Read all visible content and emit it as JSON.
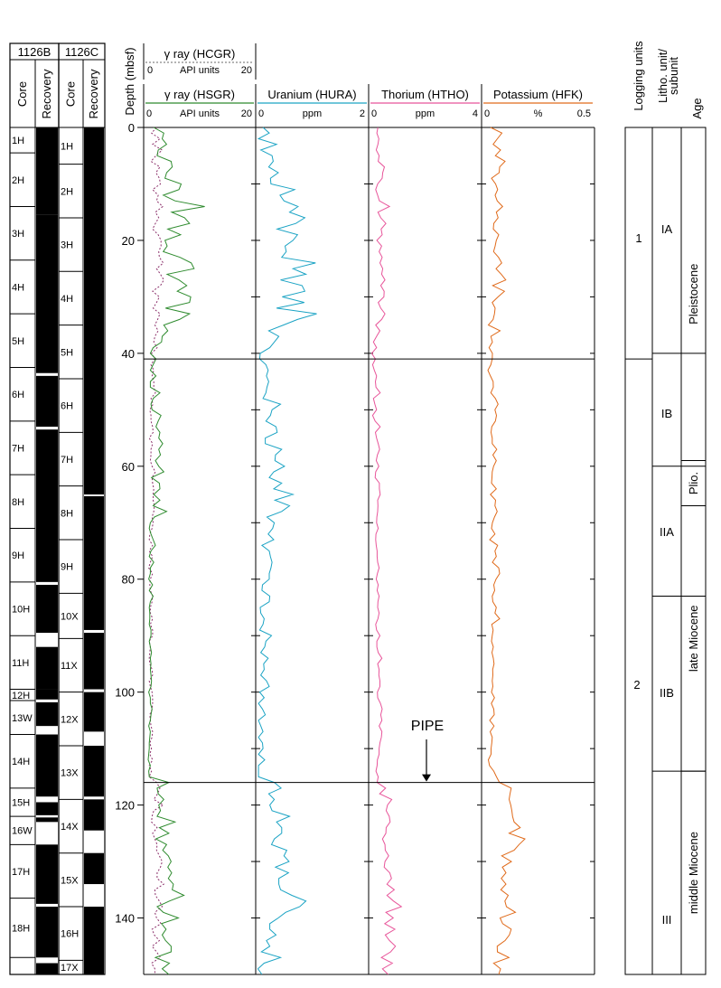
{
  "chart_data": {
    "type": "line",
    "title": "",
    "depth_axis": {
      "label": "Depth (mbsf)",
      "ylim": [
        0,
        150
      ],
      "ticks": [
        0,
        20,
        40,
        60,
        80,
        100,
        120,
        140
      ]
    },
    "hole_b": {
      "name": "1126B",
      "col_core": "Core",
      "col_recovery": "Recovery",
      "cores": [
        {
          "label": "1H",
          "top": 0,
          "bottom": 4.5
        },
        {
          "label": "2H",
          "top": 4.5,
          "bottom": 14
        },
        {
          "label": "3H",
          "top": 14,
          "bottom": 23.5
        },
        {
          "label": "4H",
          "top": 23.5,
          "bottom": 33
        },
        {
          "label": "5H",
          "top": 33,
          "bottom": 42.5
        },
        {
          "label": "6H",
          "top": 42.5,
          "bottom": 52
        },
        {
          "label": "7H",
          "top": 52,
          "bottom": 61.5
        },
        {
          "label": "8H",
          "top": 61.5,
          "bottom": 71
        },
        {
          "label": "9H",
          "top": 71,
          "bottom": 80.5
        },
        {
          "label": "10H",
          "top": 80.5,
          "bottom": 90
        },
        {
          "label": "11H",
          "top": 90,
          "bottom": 99.5
        },
        {
          "label": "12H",
          "top": 99.5,
          "bottom": 101.5
        },
        {
          "label": "13W",
          "top": 101.5,
          "bottom": 107.5
        },
        {
          "label": "14H",
          "top": 107.5,
          "bottom": 117
        },
        {
          "label": "15H",
          "top": 117,
          "bottom": 122
        },
        {
          "label": "16W",
          "top": 122,
          "bottom": 127
        },
        {
          "label": "17H",
          "top": 127,
          "bottom": 136.5
        },
        {
          "label": "18H",
          "top": 136.5,
          "bottom": 147
        }
      ],
      "recovered": [
        [
          0,
          15.5
        ],
        [
          15.5,
          43.5
        ],
        [
          44,
          53
        ],
        [
          53.5,
          80.5
        ],
        [
          81,
          89.5
        ],
        [
          92,
          99.5
        ],
        [
          99.5,
          101.3
        ],
        [
          101.8,
          106
        ],
        [
          107.5,
          118.5
        ],
        [
          119.5,
          121.8
        ],
        [
          122.2,
          123
        ],
        [
          127,
          137.5
        ],
        [
          138,
          147
        ],
        [
          148,
          150
        ]
      ]
    },
    "hole_c": {
      "name": "1126C",
      "col_core": "Core",
      "col_recovery": "Recovery",
      "cores": [
        {
          "label": "1H",
          "top": 0,
          "bottom": 6.5
        },
        {
          "label": "2H",
          "top": 6.5,
          "bottom": 16
        },
        {
          "label": "3H",
          "top": 16,
          "bottom": 25.5
        },
        {
          "label": "4H",
          "top": 25.5,
          "bottom": 35
        },
        {
          "label": "5H",
          "top": 35,
          "bottom": 44.5
        },
        {
          "label": "6H",
          "top": 44.5,
          "bottom": 54
        },
        {
          "label": "7H",
          "top": 54,
          "bottom": 63.5
        },
        {
          "label": "8H",
          "top": 63.5,
          "bottom": 73
        },
        {
          "label": "9H",
          "top": 73,
          "bottom": 82.5
        },
        {
          "label": "10X",
          "top": 82.5,
          "bottom": 90.5
        },
        {
          "label": "11X",
          "top": 90.5,
          "bottom": 100
        },
        {
          "label": "12X",
          "top": 100,
          "bottom": 109.5
        },
        {
          "label": "13X",
          "top": 109.5,
          "bottom": 119
        },
        {
          "label": "14X",
          "top": 119,
          "bottom": 128.5
        },
        {
          "label": "15X",
          "top": 128.5,
          "bottom": 138
        },
        {
          "label": "16H",
          "top": 138,
          "bottom": 147.5
        },
        {
          "label": "17X",
          "top": 147.5,
          "bottom": 150
        }
      ],
      "recovered": [
        [
          0,
          65
        ],
        [
          65.3,
          89
        ],
        [
          89.5,
          99.5
        ],
        [
          100,
          107
        ],
        [
          109.5,
          118.5
        ],
        [
          119,
          124.5
        ],
        [
          128.5,
          134
        ],
        [
          138,
          150
        ]
      ]
    },
    "tracks": [
      {
        "name": "γ ray (HCGR)",
        "unit": "API units",
        "range": [
          0,
          20
        ],
        "color": "#8b2f6a",
        "dashed": true,
        "values": [
          2.3,
          1.4,
          2.9,
          1.6,
          3.3,
          2.2,
          1.3,
          2.9,
          2.2,
          2.8,
          3.0,
          1.6,
          2.6,
          2.3,
          3.4,
          2.1,
          2.7,
          2.1,
          1.6,
          2.6,
          3.1,
          3.1,
          2.7,
          2.8,
          3.5,
          2.3,
          3.0,
          3.6,
          3.0,
          1.6,
          2.8,
          2.3,
          1.7,
          2.9,
          2.5,
          2.0,
          2.6,
          2.0,
          1.8,
          2.4,
          1.4,
          2.0,
          1.3,
          1.8,
          1.5,
          1.8,
          1.8,
          2.1,
          1.3,
          1.7,
          1.1,
          1.3,
          1.3,
          1.6,
          1.7,
          1.0,
          1.6,
          1.3,
          1.3,
          1.2,
          1.5,
          2.1,
          1.5,
          1.6,
          1.8,
          1.7,
          1.7,
          1.9,
          1.8,
          1.5,
          1.7,
          1.5,
          1.1,
          1.0,
          1.6,
          1.0,
          1.6,
          1.2,
          0.9,
          1.6,
          1.2,
          1.1,
          1.2,
          1.6,
          1.5,
          1.2,
          1.2,
          1.6,
          1.2,
          1.6,
          1.6,
          1.0,
          1.2,
          1.1,
          1.0,
          1.1,
          1.5,
          1.6,
          1.0,
          1.2,
          1.5,
          1.6,
          1.6,
          1.5,
          1.1,
          1.2,
          1.3,
          1.6,
          1.5,
          1.1,
          1.4,
          1.1,
          1.6,
          1.0,
          1.4,
          1.0,
          2.3,
          2.9,
          2.5,
          1.8,
          3.5,
          1.8,
          1.5,
          1.4,
          2.4,
          1.6,
          2.0,
          2.4,
          2.3,
          2.8,
          3.3,
          3.0,
          2.4,
          2.4,
          3.6,
          2.0,
          2.1,
          2.8,
          3.3,
          2.0,
          2.3,
          3.1,
          1.5,
          1.9,
          2.8,
          1.5,
          2.3,
          3.0,
          1.4,
          2.0,
          2.0
        ]
      },
      {
        "name": "γ ray (HSGR)",
        "unit": "API units",
        "range": [
          0,
          20
        ],
        "color": "#2e8b2e",
        "values": [
          1.8,
          3.6,
          3.3,
          4.1,
          2.6,
          2.4,
          4.9,
          5.1,
          4.1,
          3.8,
          6.7,
          6.3,
          3.5,
          5.6,
          10.9,
          5.0,
          7.3,
          8.2,
          4.3,
          6.6,
          3.8,
          4.2,
          3.5,
          6.5,
          8.5,
          9.0,
          4.2,
          6.3,
          7.7,
          6.0,
          8.4,
          8.2,
          3.9,
          8.2,
          6.4,
          3.6,
          4.3,
          3.3,
          3.2,
          1.7,
          1.2,
          2.2,
          1.7,
          1.2,
          2.2,
          1.2,
          1.2,
          2.9,
          1.7,
          1.3,
          1.5,
          3.1,
          2.6,
          2.2,
          2.9,
          2.7,
          3.4,
          2.7,
          3.0,
          2.1,
          2.7,
          3.6,
          1.4,
          2.8,
          2.9,
          1.8,
          2.9,
          1.7,
          4.1,
          1.9,
          1.2,
          1.0,
          1.3,
          1.7,
          2.1,
          1.3,
          1.0,
          1.8,
          1.2,
          1.2,
          0.9,
          1.6,
          1.0,
          1.7,
          1.2,
          1.0,
          1.1,
          1.1,
          1.0,
          1.3,
          1.3,
          1.0,
          1.2,
          1.4,
          1.2,
          1.3,
          1.2,
          1.3,
          1.4,
          1.3,
          0.9,
          1.2,
          1.2,
          1.5,
          1.3,
          1.2,
          0.9,
          1.2,
          1.1,
          1.0,
          1.0,
          0.9,
          0.8,
          1.2,
          0.9,
          1.0,
          4.5,
          2.4,
          2.6,
          3.6,
          2.7,
          3.0,
          2.4,
          5.6,
          2.8,
          4.5,
          2.2,
          4.1,
          3.4,
          4.4,
          4.9,
          4.3,
          5.0,
          4.4,
          5.3,
          5.1,
          7.2,
          4.6,
          2.4,
          3.5,
          6.2,
          3.2,
          4.0,
          3.3,
          3.9,
          4.9,
          4.9,
          2.1,
          4.6,
          3.3,
          4.5
        ]
      },
      {
        "name": "Uranium (HURA)",
        "unit": "ppm",
        "range": [
          0,
          2
        ],
        "color": "#1aa3c4",
        "values": [
          0.13,
          0.24,
          0.05,
          0.37,
          0.09,
          0.29,
          0.31,
          0.23,
          0.4,
          0.26,
          0.27,
          0.69,
          0.43,
          0.5,
          0.75,
          0.6,
          0.87,
          0.71,
          0.38,
          0.74,
          0.66,
          0.52,
          0.54,
          0.46,
          1.06,
          0.66,
          0.89,
          0.44,
          0.82,
          0.87,
          0.47,
          0.86,
          0.37,
          1.08,
          0.74,
          0.49,
          0.23,
          0.41,
          0.33,
          0.25,
          0.08,
          0.07,
          0.18,
          0.22,
          0.19,
          0.23,
          0.2,
          0.18,
          0.13,
          0.44,
          0.29,
          0.26,
          0.18,
          0.36,
          0.38,
          0.17,
          0.17,
          0.46,
          0.35,
          0.34,
          0.51,
          0.32,
          0.24,
          0.46,
          0.32,
          0.66,
          0.34,
          0.6,
          0.46,
          0.2,
          0.33,
          0.3,
          0.22,
          0.32,
          0.11,
          0.24,
          0.26,
          0.29,
          0.27,
          0.24,
          0.24,
          0.12,
          0.11,
          0.25,
          0.24,
          0.08,
          0.09,
          0.15,
          0.13,
          0.07,
          0.28,
          0.18,
          0.16,
          0.09,
          0.22,
          0.14,
          0.15,
          0.09,
          0.19,
          0.24,
          0.07,
          0.15,
          0.05,
          0.12,
          0.17,
          0.05,
          0.09,
          0.13,
          0.05,
          0.12,
          0.13,
          0.05,
          0.16,
          0.05,
          0.05,
          0.05,
          0.33,
          0.45,
          0.23,
          0.33,
          0.25,
          0.29,
          0.6,
          0.37,
          0.46,
          0.46,
          0.33,
          0.28,
          0.55,
          0.5,
          0.59,
          0.35,
          0.58,
          0.41,
          0.41,
          0.44,
          0.64,
          0.89,
          0.78,
          0.53,
          0.4,
          0.25,
          0.25,
          0.36,
          0.19,
          0.25,
          0.1,
          0.44,
          0.15,
          0.04,
          0.11
        ]
      },
      {
        "name": "Thorium (HTHO)",
        "unit": "ppm",
        "range": [
          0,
          4
        ],
        "color": "#e8559a",
        "values": [
          0.33,
          0.29,
          0.36,
          0.33,
          0.27,
          0.37,
          0.34,
          0.56,
          0.5,
          0.48,
          0.32,
          0.25,
          0.32,
          0.38,
          0.74,
          0.33,
          0.43,
          0.61,
          0.44,
          0.48,
          0.29,
          0.46,
          0.37,
          0.48,
          0.4,
          0.5,
          0.46,
          0.58,
          0.43,
          0.55,
          0.54,
          0.34,
          0.43,
          0.58,
          0.46,
          0.25,
          0.4,
          0.28,
          0.17,
          0.28,
          0.11,
          0.24,
          0.14,
          0.2,
          0.28,
          0.24,
          0.26,
          0.41,
          0.17,
          0.22,
          0.28,
          0.14,
          0.23,
          0.41,
          0.24,
          0.28,
          0.34,
          0.39,
          0.31,
          0.27,
          0.36,
          0.25,
          0.23,
          0.38,
          0.38,
          0.41,
          0.32,
          0.33,
          0.32,
          0.29,
          0.28,
          0.34,
          0.26,
          0.25,
          0.27,
          0.3,
          0.3,
          0.32,
          0.37,
          0.31,
          0.27,
          0.34,
          0.3,
          0.37,
          0.33,
          0.32,
          0.37,
          0.33,
          0.25,
          0.28,
          0.4,
          0.29,
          0.29,
          0.34,
          0.47,
          0.32,
          0.37,
          0.36,
          0.4,
          0.4,
          0.31,
          0.32,
          0.42,
          0.48,
          0.43,
          0.47,
          0.37,
          0.47,
          0.45,
          0.4,
          0.37,
          0.37,
          0.31,
          0.3,
          0.26,
          0.34,
          0.3,
          0.6,
          0.39,
          0.82,
          0.67,
          0.62,
          0.73,
          0.76,
          0.62,
          0.61,
          0.49,
          0.58,
          0.59,
          0.71,
          0.58,
          0.55,
          0.75,
          0.81,
          0.65,
          0.91,
          0.65,
          0.88,
          1.16,
          0.61,
          0.87,
          0.57,
          0.93,
          0.59,
          0.74,
          0.95,
          0.78,
          0.45,
          0.84,
          0.49,
          0.69
        ]
      },
      {
        "name": "Potassium (HFK)",
        "unit": "%",
        "range": [
          0,
          0.5
        ],
        "color": "#e06a1a",
        "values": [
          0.04,
          0.09,
          0.07,
          0.051,
          0.084,
          0.061,
          0.104,
          0.08,
          0.078,
          0.044,
          0.062,
          0.071,
          0.06,
          0.069,
          0.093,
          0.065,
          0.073,
          0.054,
          0.052,
          0.076,
          0.065,
          0.06,
          0.053,
          0.075,
          0.089,
          0.064,
          0.087,
          0.107,
          0.049,
          0.101,
          0.073,
          0.047,
          0.06,
          0.057,
          0.051,
          0.03,
          0.082,
          0.041,
          0.048,
          0.033,
          0.048,
          0.047,
          0.041,
          0.028,
          0.039,
          0.051,
          0.052,
          0.041,
          0.061,
          0.073,
          0.059,
          0.066,
          0.061,
          0.045,
          0.042,
          0.047,
          0.047,
          0.067,
          0.05,
          0.065,
          0.053,
          0.047,
          0.046,
          0.044,
          0.065,
          0.039,
          0.062,
          0.059,
          0.069,
          0.057,
          0.048,
          0.044,
          0.059,
          0.036,
          0.071,
          0.059,
          0.065,
          0.048,
          0.076,
          0.08,
          0.064,
          0.054,
          0.058,
          0.047,
          0.05,
          0.065,
          0.059,
          0.08,
          0.045,
          0.051,
          0.047,
          0.044,
          0.052,
          0.046,
          0.052,
          0.055,
          0.049,
          0.05,
          0.047,
          0.05,
          0.044,
          0.057,
          0.043,
          0.054,
          0.056,
          0.036,
          0.055,
          0.038,
          0.047,
          0.045,
          0.042,
          0.042,
          0.03,
          0.035,
          0.054,
          0.066,
          0.079,
          0.131,
          0.126,
          0.122,
          0.129,
          0.134,
          0.137,
          0.144,
          0.171,
          0.122,
          0.192,
          0.166,
          0.144,
          0.089,
          0.132,
          0.092,
          0.108,
          0.087,
          0.108,
          0.085,
          0.118,
          0.103,
          0.11,
          0.15,
          0.082,
          0.093,
          0.131,
          0.123,
          0.104,
          0.069,
          0.07,
          0.121,
          0.053,
          0.084,
          0.076
        ]
      }
    ],
    "depth_step": 1,
    "boundaries": [
      41,
      116
    ],
    "annotation": {
      "text": "PIPE",
      "depth": 116
    },
    "logging_units": {
      "header": "Logging units",
      "units": [
        {
          "label": "1",
          "top": 0,
          "bottom": 41
        },
        {
          "label": "2",
          "top": 41,
          "bottom": 150
        }
      ]
    },
    "litho_units": {
      "header_line1": "Litho. unit/",
      "header_line2": "subunit",
      "units": [
        {
          "label": "IA",
          "top": 0,
          "bottom": 40
        },
        {
          "label": "IB",
          "top": 40,
          "bottom": 60
        },
        {
          "label": "IIA",
          "top": 60,
          "bottom": 83
        },
        {
          "label": "IIB",
          "top": 83,
          "bottom": 114
        },
        {
          "label": "III",
          "top": 114,
          "bottom": 150
        }
      ]
    },
    "age": {
      "header": "Age",
      "units": [
        {
          "label": "Pleistocene",
          "top": 0,
          "bottom": 59
        },
        {
          "label": "Plio.",
          "top": 59,
          "bottom": 67
        },
        {
          "label": "late Miocene",
          "top": 67,
          "bottom": 114
        },
        {
          "label": "middle Miocene",
          "top": 114,
          "bottom": 150
        }
      ]
    }
  }
}
